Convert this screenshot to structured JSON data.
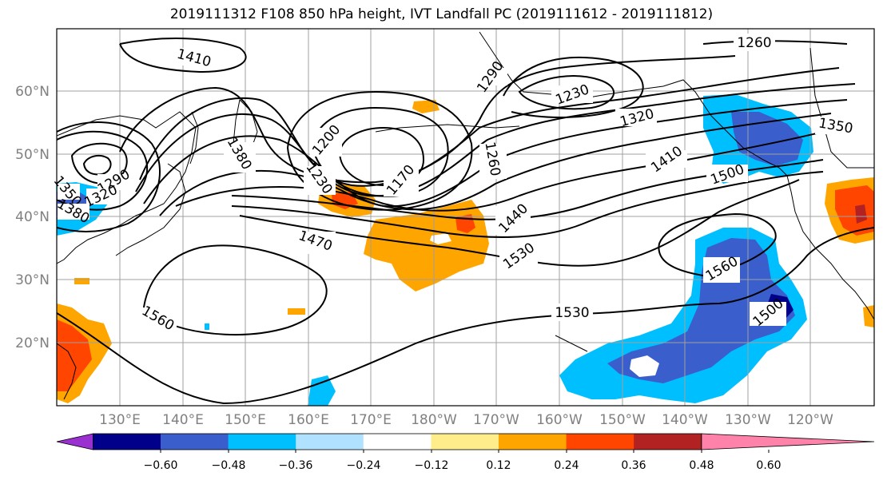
{
  "title": "2019111312 F108 850 hPa height, IVT Landfall PC (2019111612 - 2019111812)",
  "lat_labels": [
    "60°N",
    "50°N",
    "40°N",
    "30°N",
    "20°N"
  ],
  "lon_labels": [
    "130°E",
    "140°E",
    "150°E",
    "160°E",
    "170°E",
    "180°W",
    "170°W",
    "160°W",
    "150°W",
    "140°W",
    "130°W",
    "120°W"
  ],
  "contour_labels": [
    "1410",
    "1290",
    "1260",
    "1230",
    "1320",
    "1350",
    "1410",
    "1500",
    "1380",
    "1200",
    "1230",
    "1170",
    "1260",
    "1440",
    "1530",
    "1470",
    "1560",
    "1560",
    "1530",
    "1500",
    "1290",
    "1320",
    "1350",
    "1380"
  ],
  "colorbar": {
    "ticks": [
      "−0.60",
      "−0.48",
      "−0.36",
      "−0.24",
      "−0.12",
      "0.12",
      "0.24",
      "0.36",
      "0.48",
      "0.60"
    ],
    "colors": [
      "#9b30d0",
      "#00008b",
      "#3a5fcd",
      "#00bfff",
      "#b0e2ff",
      "#ffffff",
      "#ffec8b",
      "#ffa500",
      "#ff4500",
      "#b22222",
      "#ff82ab"
    ]
  }
}
